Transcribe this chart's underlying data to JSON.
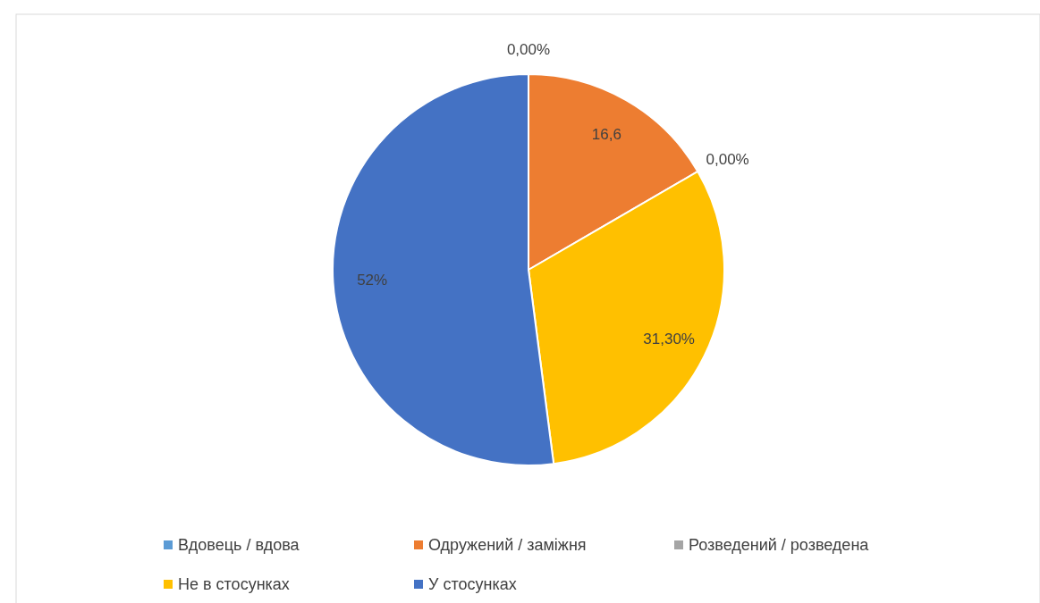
{
  "chart_data": {
    "type": "pie",
    "categories": [
      "Вдовець / вдова",
      "Одружений / заміжня",
      "Розведений / розведена",
      "Не в стосунках",
      "У стосунках"
    ],
    "values": [
      0,
      16.6,
      0,
      31.3,
      52
    ],
    "colors": [
      "#5b9bd5",
      "#ed7d31",
      "#a5a5a5",
      "#ffc000",
      "#4472c4"
    ],
    "value_labels": [
      "0,00%",
      "16,6",
      "0,00%",
      "31,30%",
      "52%"
    ],
    "legend": "bottom"
  }
}
